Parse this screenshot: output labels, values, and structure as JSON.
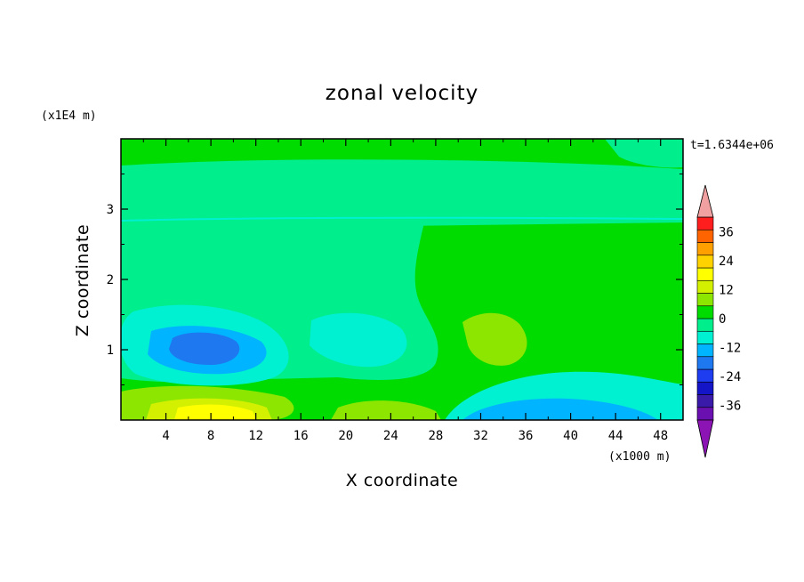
{
  "chart_data": {
    "type": "heatmap",
    "title": "zonal velocity",
    "xlabel": "X coordinate",
    "ylabel": "Z coordinate",
    "x_unit": "(x1000 m)",
    "y_unit": "(x1E4 m)",
    "time_label": "t=1.6344e+06",
    "xlim": [
      0,
      50
    ],
    "ylim": [
      0,
      4
    ],
    "x_ticks": [
      "4",
      "8",
      "12",
      "16",
      "20",
      "24",
      "28",
      "32",
      "36",
      "40",
      "44",
      "48"
    ],
    "y_ticks": [
      "1",
      "2",
      "3"
    ],
    "colorbar": {
      "tick_labels": [
        "36",
        "24",
        "12",
        "0",
        "-12",
        "-24",
        "-36"
      ],
      "levels": [
        -42,
        -36,
        -30,
        -24,
        -18,
        -12,
        -6,
        0,
        6,
        12,
        18,
        24,
        30,
        36,
        42
      ],
      "colors": [
        "#6a0fb0",
        "#3a1aa8",
        "#1515c8",
        "#1e3cf0",
        "#1e78f0",
        "#00b4ff",
        "#00f0d2",
        "#00ee8c",
        "#00dc00",
        "#8ce600",
        "#d2f000",
        "#ffff00",
        "#ffd200",
        "#ffa000",
        "#ff6400",
        "#ff1e1e"
      ],
      "under_color": "#8c14b4",
      "over_color": "#f0a0a0"
    },
    "regions": [
      {
        "level": 0,
        "x_range": [
          0,
          50
        ],
        "z_range": [
          0,
          4
        ]
      },
      {
        "level": -6,
        "x_range": [
          0,
          28
        ],
        "z_range": [
          0.5,
          2.85
        ]
      },
      {
        "level": -6,
        "x_range": [
          0,
          50
        ],
        "z_range": [
          2.8,
          3.6
        ]
      },
      {
        "level": -12,
        "x_range": [
          2,
          13
        ],
        "z_range": [
          0.6,
          1.5
        ]
      },
      {
        "level": -18,
        "x_range": [
          4,
          11
        ],
        "z_range": [
          0.75,
          1.25
        ]
      },
      {
        "level": 6,
        "x_range": [
          30,
          36
        ],
        "z_range": [
          0.8,
          1.6
        ]
      },
      {
        "level": 12,
        "x_range": [
          1,
          17
        ],
        "z_range": [
          0,
          0.4
        ]
      },
      {
        "level": 18,
        "x_range": [
          6,
          12
        ],
        "z_range": [
          0,
          0.15
        ]
      },
      {
        "level": -12,
        "x_range": [
          30,
          48
        ],
        "z_range": [
          0,
          0.5
        ]
      }
    ]
  }
}
